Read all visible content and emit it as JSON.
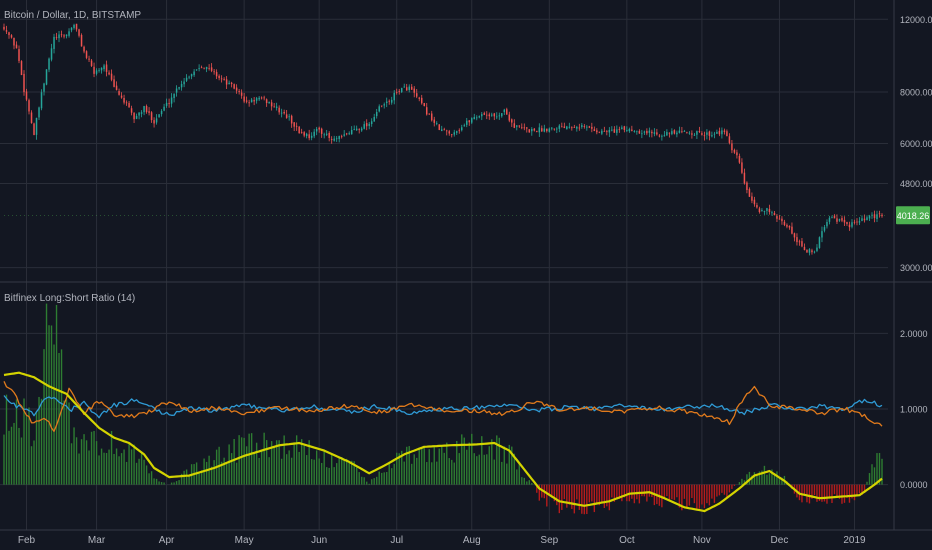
{
  "header": {
    "main_title": "Bitcoin / Dollar, 1D, BITSTAMP",
    "indicator_title": "Bitfinex Long:Short Ratio (14)"
  },
  "colors": {
    "background": "#131722",
    "grid": "#2a2e39",
    "text": "#b2b5be",
    "up": "#26a69a",
    "down": "#ef5350",
    "price_badge": "#4caf50",
    "ratio_long": "#2f9bd6",
    "ratio_short": "#e07a1c",
    "signal": "#d4d400",
    "hist_pos": "#2e7d32",
    "hist_neg": "#b71c1c"
  },
  "chart_data": [
    {
      "type": "candlestick",
      "title": "Bitcoin / Dollar, 1D, BITSTAMP",
      "x_tick_labels": [
        "Feb",
        "Mar",
        "Apr",
        "May",
        "Jun",
        "Jul",
        "Aug",
        "Sep",
        "Oct",
        "Nov",
        "Dec",
        "2019"
      ],
      "y_tick_labels": [
        "12000.00",
        "8000.00",
        "6000.00",
        "4800.00",
        "3000.00"
      ],
      "y_ticks": [
        12000,
        8000,
        6000,
        4800,
        3000
      ],
      "y_scale": "log",
      "ylim": [
        2800,
        12500
      ],
      "last_price": "4018.26",
      "last_price_value": 4018.26,
      "grid": true,
      "close_anchors": [
        [
          0,
          11500
        ],
        [
          5,
          10200
        ],
        [
          8,
          8100
        ],
        [
          12,
          6300
        ],
        [
          16,
          8400
        ],
        [
          20,
          10800
        ],
        [
          25,
          11000
        ],
        [
          28,
          11700
        ],
        [
          32,
          10000
        ],
        [
          36,
          8900
        ],
        [
          40,
          9300
        ],
        [
          44,
          8200
        ],
        [
          48,
          7600
        ],
        [
          52,
          6900
        ],
        [
          56,
          7300
        ],
        [
          60,
          6800
        ],
        [
          63,
          7200
        ],
        [
          66,
          7600
        ],
        [
          70,
          8300
        ],
        [
          75,
          8900
        ],
        [
          79,
          9300
        ],
        [
          83,
          9000
        ],
        [
          88,
          8500
        ],
        [
          93,
          8100
        ],
        [
          97,
          7500
        ],
        [
          101,
          7700
        ],
        [
          105,
          7600
        ],
        [
          110,
          7200
        ],
        [
          114,
          6900
        ],
        [
          118,
          6400
        ],
        [
          122,
          6250
        ],
        [
          126,
          6500
        ],
        [
          131,
          6100
        ],
        [
          135,
          6200
        ],
        [
          140,
          6500
        ],
        [
          146,
          6700
        ],
        [
          150,
          7300
        ],
        [
          154,
          7600
        ],
        [
          158,
          8100
        ],
        [
          162,
          8200
        ],
        [
          166,
          7600
        ],
        [
          170,
          7000
        ],
        [
          174,
          6500
        ],
        [
          178,
          6350
        ],
        [
          182,
          6500
        ],
        [
          187,
          6900
        ],
        [
          192,
          7100
        ],
        [
          196,
          6950
        ],
        [
          200,
          7200
        ],
        [
          204,
          6600
        ],
        [
          210,
          6450
        ],
        [
          216,
          6500
        ],
        [
          222,
          6600
        ],
        [
          228,
          6650
        ],
        [
          234,
          6550
        ],
        [
          238,
          6400
        ],
        [
          244,
          6450
        ],
        [
          250,
          6500
        ],
        [
          256,
          6400
        ],
        [
          262,
          6350
        ],
        [
          268,
          6350
        ],
        [
          274,
          6400
        ],
        [
          280,
          6300
        ],
        [
          286,
          6400
        ],
        [
          289,
          6300
        ],
        [
          291,
          5700
        ],
        [
          293,
          5600
        ],
        [
          296,
          4800
        ],
        [
          299,
          4300
        ],
        [
          302,
          4100
        ],
        [
          305,
          4200
        ],
        [
          309,
          3900
        ],
        [
          313,
          3800
        ],
        [
          317,
          3500
        ],
        [
          321,
          3300
        ],
        [
          324,
          3250
        ],
        [
          327,
          3700
        ],
        [
          330,
          4000
        ],
        [
          334,
          3900
        ],
        [
          337,
          3800
        ],
        [
          341,
          3850
        ],
        [
          345,
          3950
        ],
        [
          349,
          4000
        ],
        [
          351,
          4018.26
        ]
      ],
      "note_closes": "Daily closes read from the chart approximately"
    },
    {
      "type": "line_histogram",
      "title": "Bitfinex Long:Short Ratio (14)",
      "y_tick_labels": [
        "2.0000",
        "1.0000",
        "0.0000"
      ],
      "y_ticks": [
        2.0,
        1.0,
        0.0
      ],
      "ylim": [
        -0.6,
        2.6
      ],
      "grid": true,
      "series": [
        {
          "color_key": "signal",
          "points": [
            [
              0,
              1.45
            ],
            [
              6,
              1.48
            ],
            [
              12,
              1.42
            ],
            [
              18,
              1.3
            ],
            [
              25,
              1.2
            ],
            [
              32,
              0.95
            ],
            [
              38,
              0.75
            ],
            [
              44,
              0.62
            ],
            [
              50,
              0.55
            ],
            [
              56,
              0.4
            ],
            [
              60,
              0.22
            ],
            [
              66,
              0.1
            ],
            [
              74,
              0.12
            ],
            [
              84,
              0.22
            ],
            [
              96,
              0.38
            ],
            [
              110,
              0.52
            ],
            [
              118,
              0.55
            ],
            [
              128,
              0.45
            ],
            [
              138,
              0.3
            ],
            [
              146,
              0.15
            ],
            [
              152,
              0.25
            ],
            [
              160,
              0.4
            ],
            [
              168,
              0.5
            ],
            [
              178,
              0.52
            ],
            [
              188,
              0.53
            ],
            [
              196,
              0.55
            ],
            [
              202,
              0.45
            ],
            [
              208,
              0.2
            ],
            [
              214,
              -0.05
            ],
            [
              222,
              -0.22
            ],
            [
              232,
              -0.28
            ],
            [
              242,
              -0.22
            ],
            [
              250,
              -0.12
            ],
            [
              258,
              -0.1
            ],
            [
              264,
              -0.18
            ],
            [
              272,
              -0.3
            ],
            [
              280,
              -0.35
            ],
            [
              286,
              -0.25
            ],
            [
              294,
              -0.05
            ],
            [
              300,
              0.12
            ],
            [
              306,
              0.18
            ],
            [
              312,
              0.05
            ],
            [
              318,
              -0.12
            ],
            [
              326,
              -0.18
            ],
            [
              334,
              -0.16
            ],
            [
              342,
              -0.14
            ],
            [
              348,
              0.0
            ],
            [
              351,
              0.08
            ]
          ]
        },
        {
          "color_key": "ratio_long",
          "points": [
            [
              0,
              1.15
            ],
            [
              4,
              1.05
            ],
            [
              8,
              1.02
            ],
            [
              12,
              0.92
            ],
            [
              16,
              1.12
            ],
            [
              20,
              1.18
            ],
            [
              26,
              0.98
            ],
            [
              32,
              1.08
            ],
            [
              38,
              0.9
            ],
            [
              44,
              1.05
            ],
            [
              52,
              1.12
            ],
            [
              60,
              1.0
            ],
            [
              66,
              0.92
            ],
            [
              74,
              1.02
            ],
            [
              84,
              0.98
            ],
            [
              96,
              1.05
            ],
            [
              110,
              0.98
            ],
            [
              124,
              1.03
            ],
            [
              138,
              0.96
            ],
            [
              150,
              1.04
            ],
            [
              162,
              0.95
            ],
            [
              176,
              1.0
            ],
            [
              188,
              1.02
            ],
            [
              200,
              1.05
            ],
            [
              212,
              0.98
            ],
            [
              224,
              1.02
            ],
            [
              236,
              1.0
            ],
            [
              248,
              1.05
            ],
            [
              260,
              0.98
            ],
            [
              272,
              1.02
            ],
            [
              284,
              1.05
            ],
            [
              296,
              0.95
            ],
            [
              306,
              1.05
            ],
            [
              318,
              1.0
            ],
            [
              328,
              1.04
            ],
            [
              336,
              0.98
            ],
            [
              344,
              1.12
            ],
            [
              351,
              1.05
            ]
          ]
        },
        {
          "color_key": "ratio_short",
          "points": [
            [
              0,
              1.35
            ],
            [
              4,
              1.2
            ],
            [
              8,
              0.95
            ],
            [
              12,
              0.8
            ],
            [
              16,
              0.88
            ],
            [
              20,
              0.72
            ],
            [
              26,
              1.25
            ],
            [
              32,
              0.95
            ],
            [
              38,
              1.1
            ],
            [
              44,
              0.92
            ],
            [
              52,
              0.9
            ],
            [
              60,
              1.0
            ],
            [
              66,
              1.1
            ],
            [
              74,
              0.98
            ],
            [
              84,
              1.02
            ],
            [
              96,
              0.95
            ],
            [
              110,
              1.02
            ],
            [
              124,
              0.97
            ],
            [
              138,
              1.04
            ],
            [
              150,
              0.96
            ],
            [
              162,
              1.05
            ],
            [
              176,
              0.99
            ],
            [
              188,
              0.98
            ],
            [
              200,
              0.92
            ],
            [
              212,
              1.1
            ],
            [
              224,
              0.98
            ],
            [
              236,
              1.01
            ],
            [
              248,
              0.96
            ],
            [
              260,
              1.02
            ],
            [
              272,
              0.97
            ],
            [
              284,
              0.9
            ],
            [
              290,
              0.82
            ],
            [
              296,
              1.15
            ],
            [
              300,
              1.3
            ],
            [
              306,
              1.05
            ],
            [
              318,
              0.99
            ],
            [
              328,
              0.95
            ],
            [
              336,
              1.01
            ],
            [
              344,
              0.9
            ],
            [
              351,
              0.78
            ]
          ]
        }
      ],
      "histogram": {
        "color_keys": [
          "hist_pos",
          "hist_neg"
        ],
        "points": [
          [
            0,
            1.0
          ],
          [
            6,
            1.1
          ],
          [
            12,
            0.7
          ],
          [
            16,
            2.3
          ],
          [
            20,
            2.1
          ],
          [
            24,
            1.6
          ],
          [
            28,
            0.7
          ],
          [
            32,
            0.55
          ],
          [
            36,
            0.8
          ],
          [
            40,
            0.6
          ],
          [
            50,
            0.5
          ],
          [
            56,
            0.3
          ],
          [
            62,
            0.05
          ],
          [
            66,
            0.0
          ],
          [
            76,
            0.25
          ],
          [
            90,
            0.5
          ],
          [
            104,
            0.6
          ],
          [
            116,
            0.55
          ],
          [
            128,
            0.4
          ],
          [
            140,
            0.25
          ],
          [
            146,
            0.02
          ],
          [
            152,
            0.25
          ],
          [
            160,
            0.4
          ],
          [
            172,
            0.5
          ],
          [
            188,
            0.55
          ],
          [
            198,
            0.55
          ],
          [
            204,
            0.4
          ],
          [
            208,
            0.1
          ],
          [
            212,
            0.0
          ],
          [
            214,
            -0.2
          ],
          [
            220,
            -0.3
          ],
          [
            232,
            -0.33
          ],
          [
            244,
            -0.28
          ],
          [
            256,
            -0.2
          ],
          [
            268,
            -0.28
          ],
          [
            280,
            -0.3
          ],
          [
            288,
            -0.18
          ],
          [
            294,
            0.05
          ],
          [
            300,
            0.18
          ],
          [
            306,
            0.22
          ],
          [
            312,
            0.1
          ],
          [
            318,
            -0.2
          ],
          [
            326,
            -0.22
          ],
          [
            338,
            -0.2
          ],
          [
            344,
            -0.1
          ],
          [
            346,
            0.2
          ],
          [
            348,
            0.35
          ],
          [
            351,
            0.42
          ]
        ]
      }
    }
  ]
}
